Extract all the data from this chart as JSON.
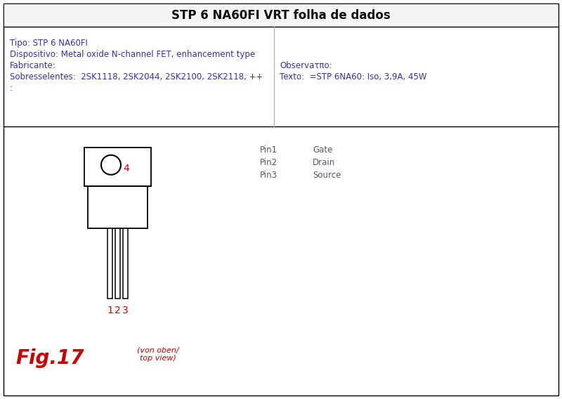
{
  "title": "STP 6 NA60FI VRT folha de dados",
  "title_fontsize": 12,
  "title_fontweight": "bold",
  "bg_color": "#ffffff",
  "border_color": "#000000",
  "top_section": {
    "tipo": "Tipo: STP 6 NA60FI",
    "dispositivo": "Dispositivo: Metal oxide N-channel FET, enhancement type",
    "fabricante": "Fabricante:",
    "sobresselentes": "Sobresselentes:  2SK1118, 2SK2044, 2SK2100, 2SK2118, ++",
    "colon": ":",
    "observacao": "Observaτπo:",
    "texto": "Texto:  =STP 6NA60: Iso, 3,9A, 45W"
  },
  "pin_labels": [
    [
      "Pin1",
      "Gate"
    ],
    [
      "Pin2",
      "Drain"
    ],
    [
      "Pin3",
      "Source"
    ]
  ],
  "fig_label": "Fig.17",
  "view_label": "(von oben/\ntop view)",
  "pin_numbers": [
    "1",
    "2",
    "3"
  ],
  "pin4_label": "4",
  "label_color": "#3333aa",
  "red_color": "#cc0000",
  "line_color": "#000000",
  "text_color": "#444466",
  "pin_text_color": "#555577"
}
